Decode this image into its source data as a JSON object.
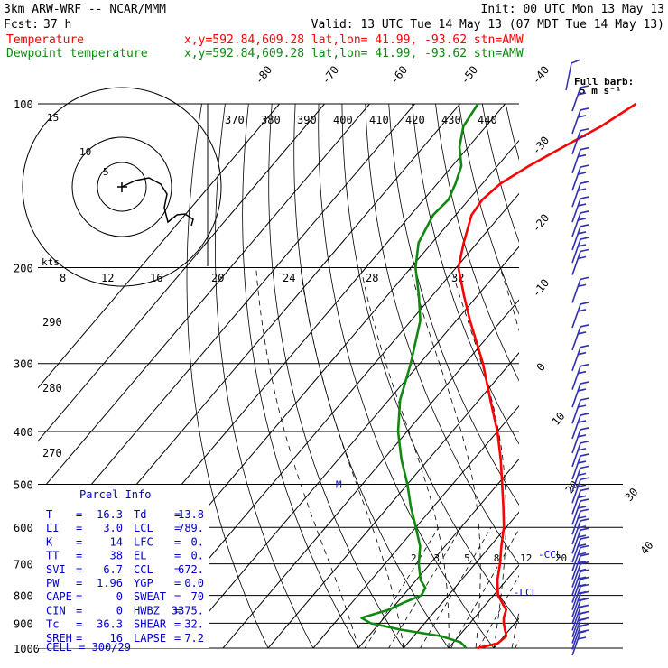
{
  "header": {
    "model": "3km ARW-WRF -- NCAR/MMM",
    "init": "Init: 00 UTC Mon 13 May 13",
    "fcst_label": "Fcst:",
    "fcst_value": "37 h",
    "valid": "Valid: 13 UTC Tue 14 May 13 (07 MDT Tue 14 May 13)",
    "temp_legend": "Temperature",
    "temp_info": "x,y=592.84,609.28   lat,lon= 41.99, -93.62  stn=AMW",
    "dew_legend": "Dewpoint temperature",
    "dew_info": "x,y=592.84,609.28   lat,lon= 41.99, -93.62  stn=AMW"
  },
  "colors": {
    "temperature": "#ff0000",
    "dewpoint": "#118811",
    "wind": "#3030b0",
    "parcel": "#0000cc",
    "grid": "#000000"
  },
  "wind_legend": {
    "line1": "Full barb:",
    "line2": "5 m s⁻¹"
  },
  "hodograph": {
    "ring_labels": [
      "5",
      "10",
      "15"
    ],
    "speed_label": "kts",
    "speed_ticks": [
      "8",
      "12",
      "16",
      "20",
      "24",
      "28",
      "32"
    ]
  },
  "parcel": {
    "title": "Parcel Info",
    "rows": [
      [
        "T",
        "16.3",
        "Td",
        "13.8"
      ],
      [
        "LI",
        "3.0",
        "LCL",
        "789."
      ],
      [
        "K",
        "14",
        "LFC",
        "0."
      ],
      [
        "TT",
        "38",
        "EL",
        "0."
      ],
      [
        "SVI",
        "6.7",
        "CCL",
        "672."
      ],
      [
        "PW",
        "1.96",
        "YGP",
        "0.0"
      ],
      [
        "CAPE",
        "0",
        "SWEAT",
        "70"
      ],
      [
        "CIN",
        "0",
        "HWBZ",
        "3375."
      ],
      [
        "Tc",
        "36.3",
        "SHEAR",
        "32."
      ],
      [
        "SREH",
        "16",
        "LAPSE",
        "7.2"
      ]
    ],
    "cell_label": "CELL = 300/29",
    "ccl_marker": "CCL",
    "lcl_marker": "LCL",
    "m_marker": "M"
  },
  "chart_data": {
    "type": "line",
    "diagram": "skew-T log-p",
    "y_axis": {
      "scale": "log",
      "range": [
        1000,
        100
      ]
    },
    "pressure_labels": [
      100,
      200,
      300,
      400,
      500,
      600,
      700,
      800,
      900,
      1000
    ],
    "isotherm_labels": [
      -80,
      -70,
      -60,
      -50,
      -40,
      -30,
      -20,
      -10,
      0,
      10,
      20,
      30,
      40
    ],
    "theta_labels": [
      370,
      380,
      390,
      400,
      410,
      420,
      430,
      440
    ],
    "left_theta_labels": [
      290,
      280,
      270
    ],
    "mixing_ratio_labels": [
      2,
      3,
      5,
      8,
      12,
      20
    ],
    "series": [
      {
        "name": "Temperature",
        "p": [
          1000,
          980,
          950,
          925,
          900,
          880,
          850,
          800,
          750,
          700,
          650,
          600,
          550,
          500,
          450,
          400,
          350,
          300,
          250,
          225,
          200,
          180,
          160,
          150,
          140,
          130,
          120,
          110,
          100
        ],
        "t": [
          16.3,
          20.0,
          20.5,
          19.0,
          17.5,
          16.5,
          15.5,
          11.0,
          8.0,
          5.5,
          2.5,
          -0.5,
          -4.5,
          -9.0,
          -14.0,
          -20.0,
          -27.5,
          -36.0,
          -47.0,
          -53.0,
          -59.5,
          -63.0,
          -66.5,
          -67.0,
          -66.0,
          -63.0,
          -59.0,
          -54.5,
          -51.0
        ]
      },
      {
        "name": "Dewpoint temperature",
        "p": [
          1000,
          990,
          975,
          950,
          925,
          900,
          880,
          850,
          825,
          800,
          775,
          750,
          700,
          650,
          600,
          550,
          500,
          450,
          400,
          350,
          300,
          250,
          225,
          200,
          180,
          160,
          150,
          140,
          130,
          120,
          110,
          100
        ],
        "t": [
          13.8,
          13.0,
          11.5,
          6.0,
          -4.0,
          -12.0,
          -15.0,
          -10.5,
          -8.5,
          -6.0,
          -6.5,
          -9.0,
          -12.5,
          -15.5,
          -20.0,
          -25.0,
          -30.0,
          -36.0,
          -42.0,
          -47.5,
          -52.0,
          -58.0,
          -63.0,
          -69.0,
          -73.0,
          -75.0,
          -74.5,
          -76.0,
          -78.0,
          -82.0,
          -85.0,
          -86.0
        ]
      }
    ],
    "wind_levels": [
      1000,
      975,
      950,
      925,
      900,
      875,
      850,
      825,
      800,
      775,
      750,
      725,
      700,
      675,
      650,
      625,
      600,
      575,
      550,
      525,
      500,
      475,
      450,
      425,
      400,
      375,
      350,
      325,
      300,
      275,
      250,
      225,
      200,
      190,
      180,
      170,
      160,
      150,
      140,
      130,
      120,
      110,
      100
    ]
  }
}
